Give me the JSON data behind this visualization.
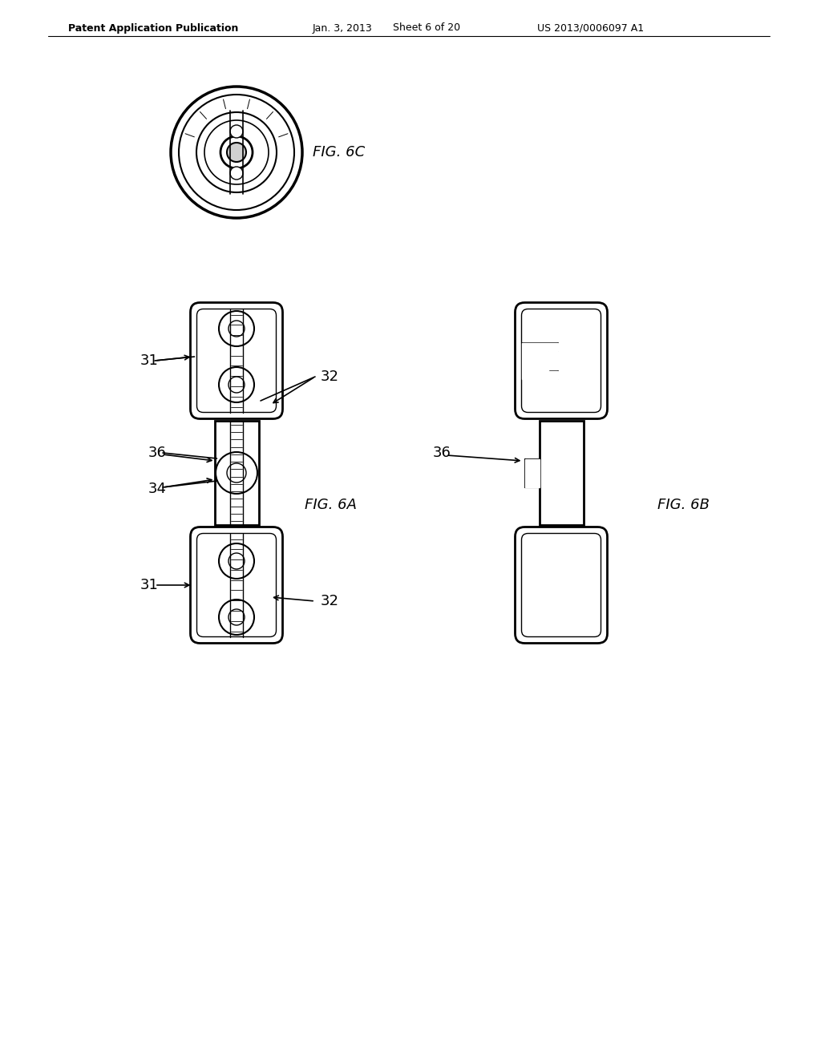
{
  "bg_color": "#ffffff",
  "header_text": "Patent Application Publication",
  "header_date": "Jan. 3, 2013",
  "header_sheet": "Sheet 6 of 20",
  "header_patent": "US 2013/0006097 A1",
  "line_color": "#000000",
  "line_width": 1.5,
  "fig6c_label": "FIG. 6C",
  "fig6a_label": "FIG. 6A",
  "fig6b_label": "FIG. 6B",
  "labels": [
    "31",
    "32",
    "36",
    "34",
    "31",
    "32",
    "36"
  ]
}
